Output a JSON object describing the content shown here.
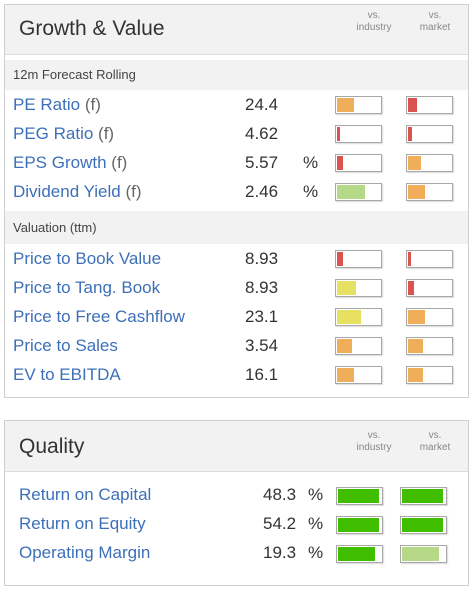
{
  "colors": {
    "red": "#d9534f",
    "orange": "#f0ad5a",
    "yellow": "#e8e061",
    "light_green": "#b6d987",
    "green": "#3fbf00",
    "link_blue": "#3d6fb8"
  },
  "growth": {
    "title": "Growth & Value",
    "col_industry": [
      "vs.",
      "industry"
    ],
    "col_market": [
      "vs.",
      "market"
    ],
    "sections": [
      {
        "label": "12m Forecast Rolling",
        "rows": [
          {
            "label": "PE Ratio",
            "suffix": "(f)",
            "value": "24.4",
            "unit": "",
            "industry": {
              "level": 0.4,
              "color": "orange"
            },
            "market": {
              "level": 0.2,
              "color": "red"
            }
          },
          {
            "label": "PEG Ratio",
            "suffix": "(f)",
            "value": "4.62",
            "unit": "",
            "industry": {
              "level": 0.05,
              "color": "red"
            },
            "market": {
              "level": 0.1,
              "color": "red"
            }
          },
          {
            "label": "EPS Growth",
            "suffix": "(f)",
            "value": "5.57",
            "unit": "%",
            "industry": {
              "level": 0.15,
              "color": "red"
            },
            "market": {
              "level": 0.3,
              "color": "orange"
            }
          },
          {
            "label": "Dividend Yield",
            "suffix": "(f)",
            "value": "2.46",
            "unit": "%",
            "industry": {
              "level": 0.65,
              "color": "light_green"
            },
            "market": {
              "level": 0.4,
              "color": "orange"
            }
          }
        ]
      },
      {
        "label": "Valuation (ttm)",
        "rows": [
          {
            "label": "Price to Book Value",
            "suffix": "",
            "value": "8.93",
            "unit": "",
            "industry": {
              "level": 0.15,
              "color": "red"
            },
            "market": {
              "level": 0.05,
              "color": "red"
            }
          },
          {
            "label": "Price to Tang. Book",
            "suffix": "",
            "value": "8.93",
            "unit": "",
            "industry": {
              "level": 0.45,
              "color": "yellow"
            },
            "market": {
              "level": 0.15,
              "color": "red"
            }
          },
          {
            "label": "Price to Free Cashflow",
            "suffix": "",
            "value": "23.1",
            "unit": "",
            "industry": {
              "level": 0.55,
              "color": "yellow"
            },
            "market": {
              "level": 0.4,
              "color": "orange"
            }
          },
          {
            "label": "Price to Sales",
            "suffix": "",
            "value": "3.54",
            "unit": "",
            "industry": {
              "level": 0.35,
              "color": "orange"
            },
            "market": {
              "level": 0.35,
              "color": "orange"
            }
          },
          {
            "label": "EV to EBITDA",
            "suffix": "",
            "value": "16.1",
            "unit": "",
            "industry": {
              "level": 0.4,
              "color": "orange"
            },
            "market": {
              "level": 0.35,
              "color": "orange"
            }
          }
        ]
      }
    ]
  },
  "quality": {
    "title": "Quality",
    "col_industry": [
      "vs.",
      "industry"
    ],
    "col_market": [
      "vs.",
      "market"
    ],
    "rows": [
      {
        "label": "Return on Capital",
        "value": "48.3",
        "unit": "%",
        "industry": {
          "level": 0.95,
          "color": "green"
        },
        "market": {
          "level": 0.95,
          "color": "green"
        }
      },
      {
        "label": "Return on Equity",
        "value": "54.2",
        "unit": "%",
        "industry": {
          "level": 0.95,
          "color": "green"
        },
        "market": {
          "level": 0.95,
          "color": "green"
        }
      },
      {
        "label": "Operating Margin",
        "value": "19.3",
        "unit": "%",
        "industry": {
          "level": 0.85,
          "color": "green"
        },
        "market": {
          "level": 0.85,
          "color": "light_green"
        }
      }
    ]
  }
}
